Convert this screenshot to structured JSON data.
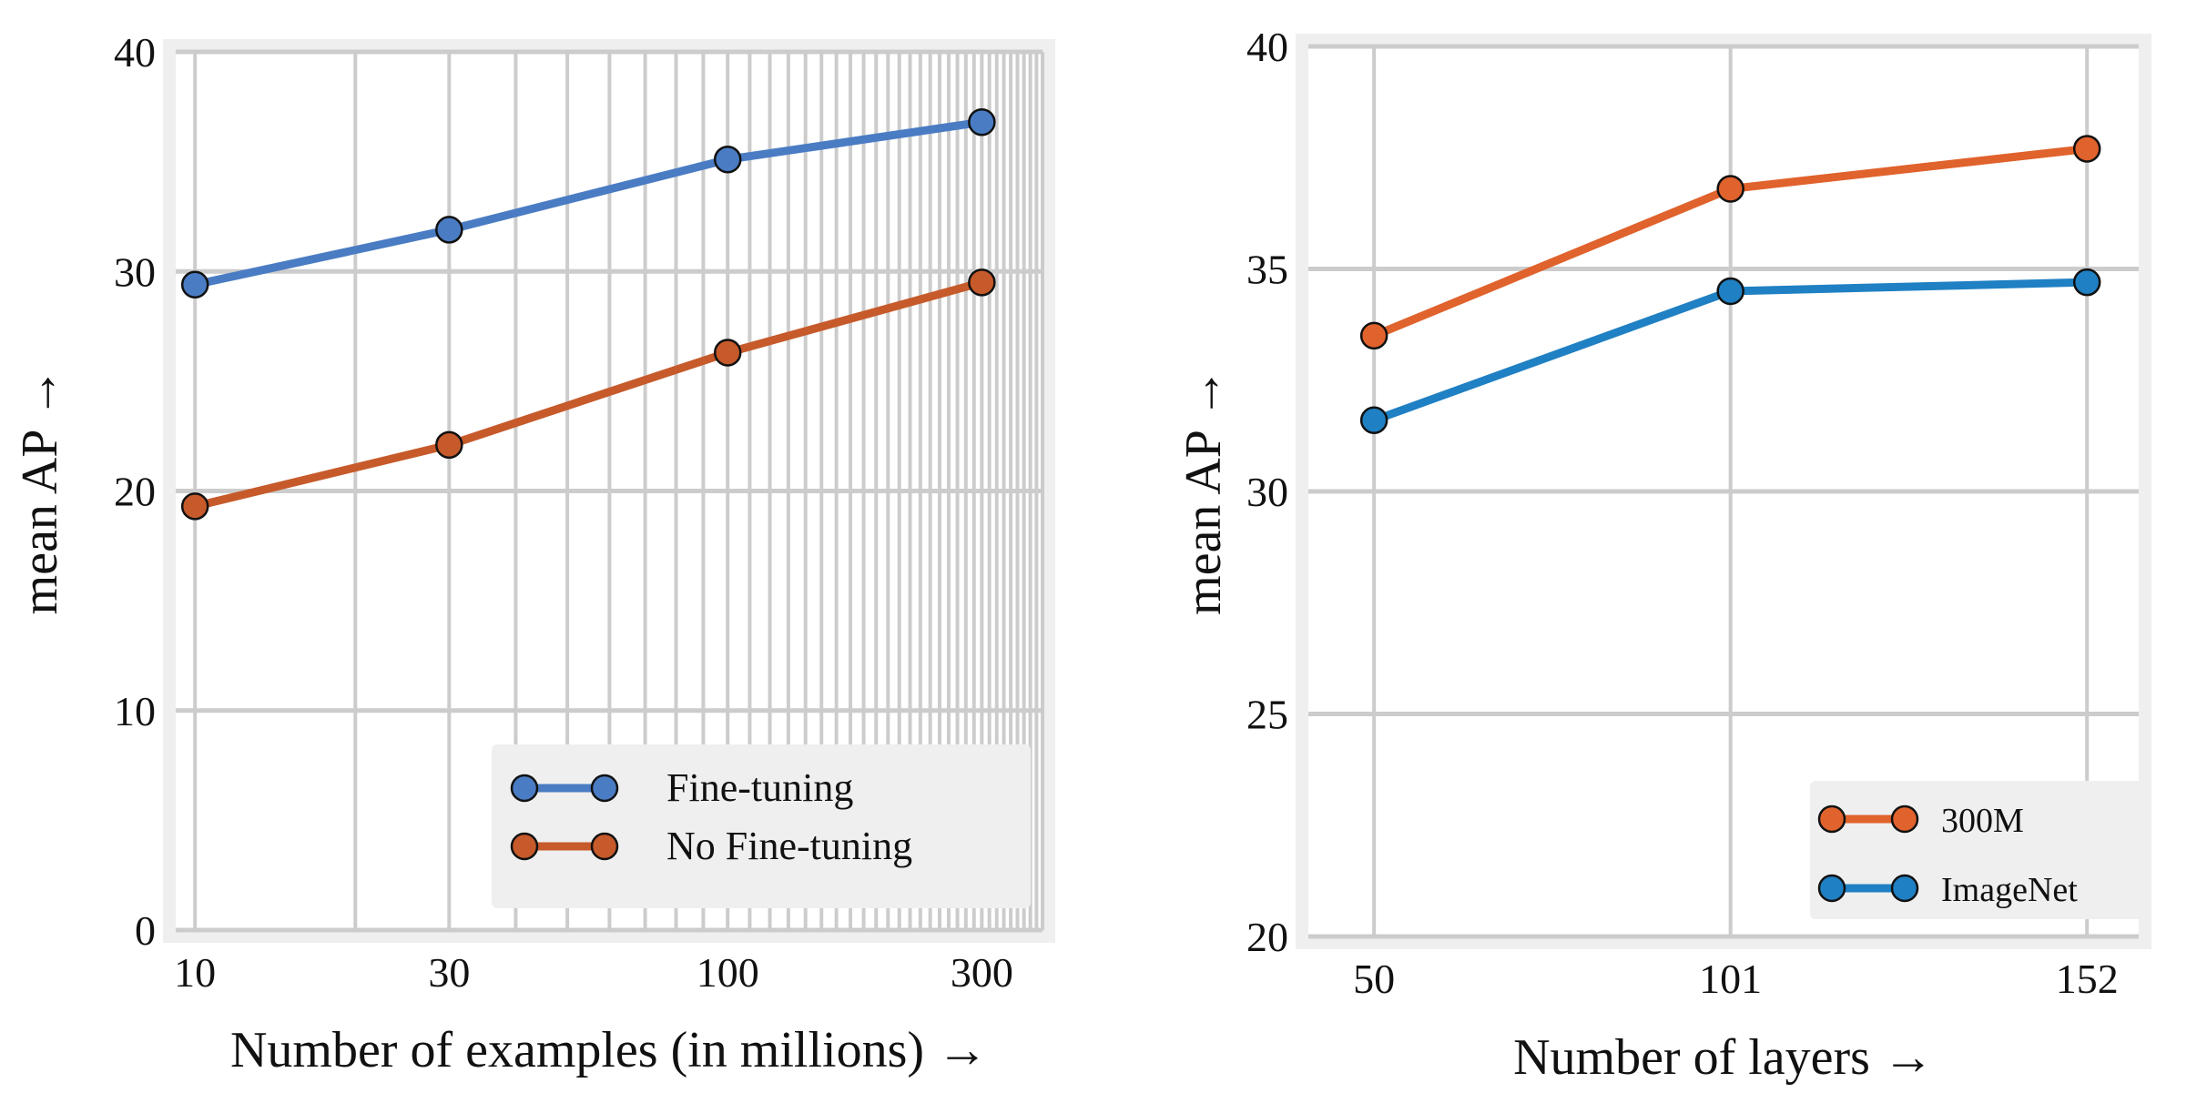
{
  "chart_data": [
    {
      "type": "line",
      "xscale": "log",
      "x": [
        10,
        30,
        100,
        300
      ],
      "xticks": [
        "10",
        "30",
        "100",
        "300"
      ],
      "xlim": [
        9.2,
        390
      ],
      "xlabel": "Number of examples (in millions) →",
      "ylabel": "mean AP →",
      "ylim": [
        0,
        40
      ],
      "yticks": [
        "0",
        "10",
        "20",
        "30",
        "40"
      ],
      "grid": true,
      "legend_position": "bottom-right",
      "series": [
        {
          "name": "Fine-tuning",
          "color": "#4a7cc3",
          "values": [
            29.4,
            31.9,
            35.1,
            36.8
          ]
        },
        {
          "name": "No Fine-tuning",
          "color": "#c65a2b",
          "values": [
            19.3,
            22.1,
            26.3,
            29.5
          ]
        }
      ]
    },
    {
      "type": "line",
      "x": [
        50,
        101,
        152
      ],
      "xticks": [
        "50",
        "101",
        "152"
      ],
      "xlim": [
        40.6,
        159.4
      ],
      "xlabel": "Number of layers →",
      "ylabel": "mean AP →",
      "ylim": [
        20,
        40
      ],
      "yticks": [
        "20",
        "25",
        "30",
        "35",
        "40"
      ],
      "grid": true,
      "legend_position": "bottom-right",
      "series": [
        {
          "name": "300M",
          "color": "#e0622c",
          "values": [
            33.5,
            36.8,
            37.7
          ]
        },
        {
          "name": "ImageNet",
          "color": "#1f80c3",
          "values": [
            31.6,
            34.5,
            34.7
          ]
        }
      ]
    }
  ]
}
